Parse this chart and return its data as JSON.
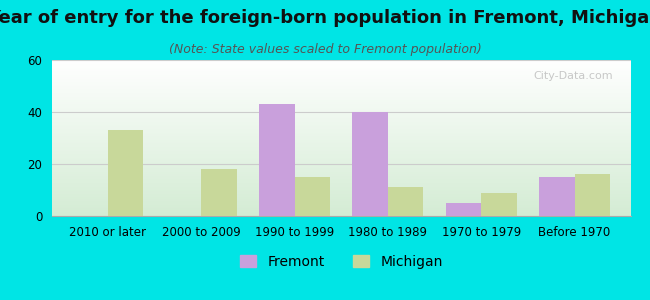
{
  "title": "Year of entry for the foreign-born population in Fremont, Michigan",
  "subtitle": "(Note: State values scaled to Fremont population)",
  "categories": [
    "2010 or later",
    "2000 to 2009",
    "1990 to 1999",
    "1980 to 1989",
    "1970 to 1979",
    "Before 1970"
  ],
  "fremont_values": [
    0,
    0,
    43,
    40,
    5,
    15
  ],
  "michigan_values": [
    33,
    18,
    15,
    11,
    9,
    16
  ],
  "fremont_color": "#c9a0dc",
  "michigan_color": "#c8d89a",
  "background_outer": "#00e5e5",
  "ylim": [
    0,
    60
  ],
  "yticks": [
    0,
    20,
    40,
    60
  ],
  "bar_width": 0.38,
  "title_fontsize": 13,
  "subtitle_fontsize": 9,
  "tick_fontsize": 8.5,
  "legend_fontsize": 10
}
